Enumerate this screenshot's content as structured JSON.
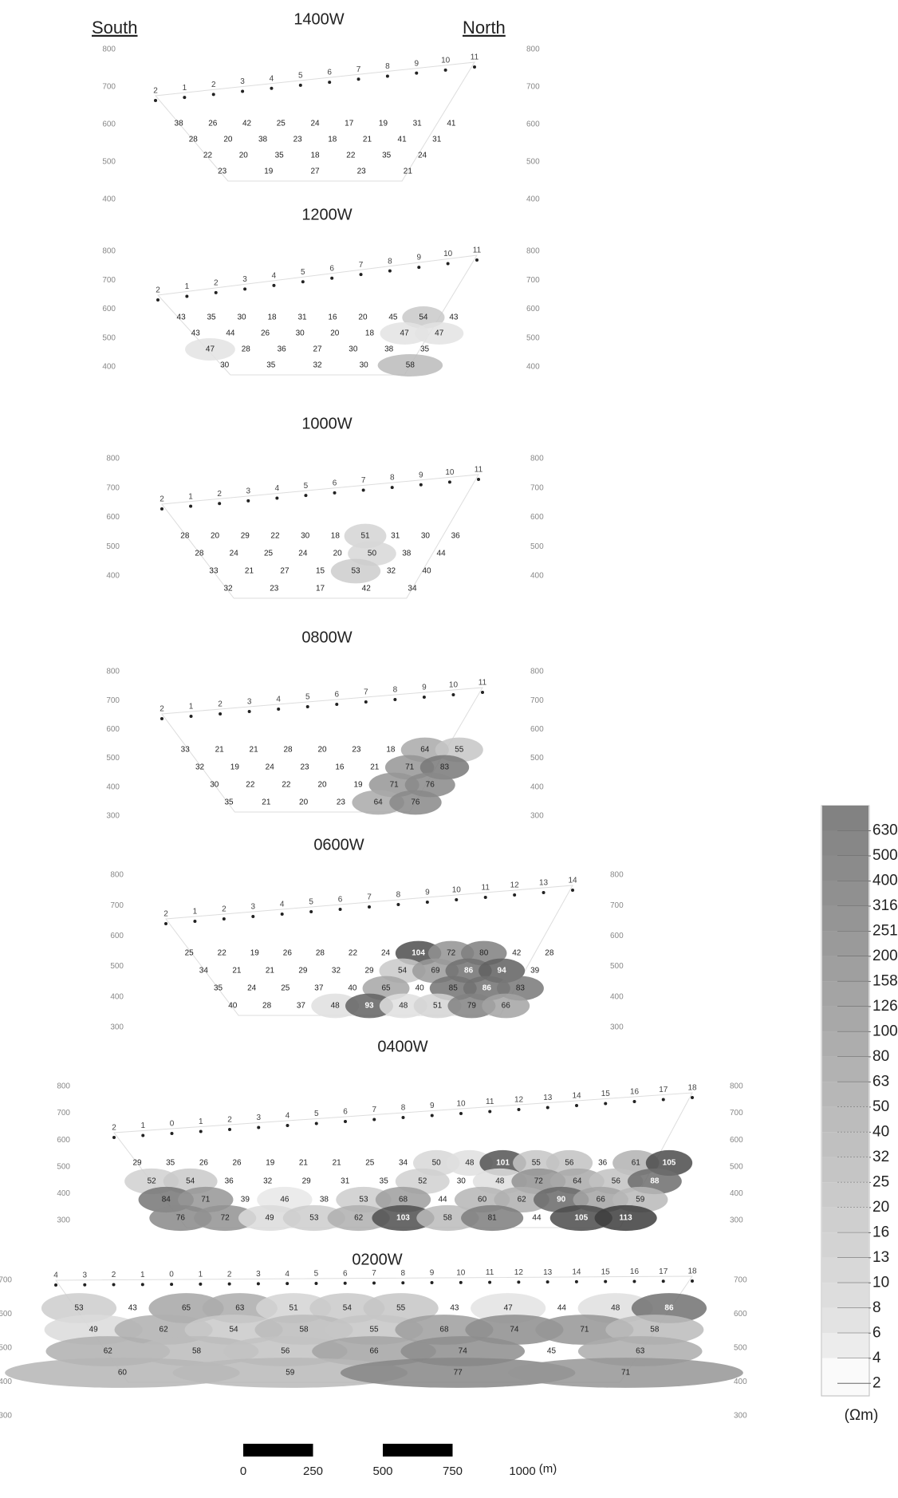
{
  "header": {
    "left": "South",
    "right": "North"
  },
  "sections": [
    {
      "title": "1400W",
      "elevations": [
        800,
        700,
        600,
        500,
        400
      ],
      "electrodes": [
        2,
        1,
        2,
        3,
        4,
        5,
        6,
        7,
        8,
        9,
        10,
        11
      ],
      "rows": [
        [
          38,
          26,
          42,
          25,
          24,
          17,
          19,
          31,
          41
        ],
        [
          28,
          20,
          38,
          23,
          18,
          21,
          41,
          31
        ],
        [
          22,
          20,
          35,
          18,
          22,
          35,
          24
        ],
        [
          23,
          19,
          27,
          23,
          21
        ]
      ]
    },
    {
      "title": "1200W",
      "elevations": [
        800,
        700,
        600,
        500,
        400
      ],
      "electrodes": [
        2,
        1,
        2,
        3,
        4,
        5,
        6,
        7,
        8,
        9,
        10,
        11
      ],
      "rows": [
        [
          43,
          35,
          30,
          18,
          31,
          16,
          20,
          45,
          54,
          43
        ],
        [
          43,
          44,
          26,
          30,
          20,
          18,
          47,
          47
        ],
        [
          47,
          28,
          36,
          27,
          30,
          38,
          35
        ],
        [
          30,
          35,
          32,
          30,
          58
        ]
      ]
    },
    {
      "title": "1000W",
      "elevations": [
        800,
        700,
        600,
        500,
        400
      ],
      "electrodes": [
        2,
        1,
        2,
        3,
        4,
        5,
        6,
        7,
        8,
        9,
        10,
        11
      ],
      "rows": [
        [
          28,
          20,
          29,
          22,
          30,
          18,
          51,
          31,
          30,
          36
        ],
        [
          28,
          24,
          25,
          24,
          20,
          50,
          38,
          44
        ],
        [
          33,
          21,
          27,
          15,
          53,
          32,
          40
        ],
        [
          32,
          23,
          17,
          42,
          34
        ]
      ]
    },
    {
      "title": "0800W",
      "elevations": [
        800,
        700,
        600,
        500,
        400,
        300
      ],
      "electrodes": [
        2,
        1,
        2,
        3,
        4,
        5,
        6,
        7,
        8,
        9,
        10,
        11
      ],
      "rows": [
        [
          33,
          21,
          21,
          28,
          20,
          23,
          18,
          64,
          55
        ],
        [
          32,
          19,
          24,
          23,
          16,
          21,
          71,
          83
        ],
        [
          30,
          22,
          22,
          20,
          19,
          71,
          76
        ],
        [
          35,
          21,
          20,
          23,
          64,
          76
        ]
      ]
    },
    {
      "title": "0600W",
      "elevations": [
        800,
        700,
        600,
        500,
        400,
        300
      ],
      "electrodes": [
        2,
        1,
        2,
        3,
        4,
        5,
        6,
        7,
        8,
        9,
        10,
        11,
        12,
        13,
        14
      ],
      "rows": [
        [
          25,
          22,
          19,
          26,
          28,
          22,
          24,
          104,
          72,
          80,
          42,
          28
        ],
        [
          34,
          21,
          21,
          29,
          32,
          29,
          54,
          69,
          86,
          94,
          39
        ],
        [
          35,
          24,
          25,
          37,
          40,
          65,
          40,
          85,
          86,
          83
        ],
        [
          40,
          28,
          37,
          48,
          93,
          48,
          51,
          79,
          66
        ]
      ]
    },
    {
      "title": "0400W",
      "elevations": [
        800,
        700,
        600,
        500,
        400,
        300
      ],
      "electrodes": [
        2,
        1,
        0,
        1,
        2,
        3,
        4,
        5,
        6,
        7,
        8,
        9,
        10,
        11,
        12,
        13,
        14,
        15,
        16,
        17,
        18
      ],
      "rows": [
        [
          29,
          35,
          26,
          26,
          19,
          21,
          21,
          25,
          34,
          50,
          48,
          101,
          55,
          56,
          36,
          61,
          105
        ],
        [
          52,
          54,
          36,
          32,
          29,
          31,
          35,
          52,
          30,
          48,
          72,
          64,
          56,
          88
        ],
        [
          84,
          71,
          39,
          46,
          38,
          53,
          68,
          44,
          60,
          62,
          90,
          66,
          59
        ],
        [
          76,
          72,
          49,
          53,
          62,
          103,
          58,
          81,
          44,
          105,
          113
        ]
      ]
    },
    {
      "title": "0200W",
      "elevations": [
        700,
        600,
        500,
        400,
        300
      ],
      "electrodes": [
        4,
        3,
        2,
        1,
        0,
        1,
        2,
        3,
        4,
        5,
        6,
        7,
        8,
        9,
        10,
        11,
        12,
        13,
        14,
        15,
        16,
        17,
        18
      ],
      "rows": [
        [
          53,
          43,
          65,
          63,
          51,
          54,
          55,
          43,
          47,
          44,
          48,
          86
        ],
        [
          49,
          62,
          54,
          58,
          55,
          68,
          74,
          71,
          58
        ],
        [
          62,
          58,
          56,
          66,
          74,
          45,
          63
        ],
        [
          60,
          59,
          77,
          71
        ]
      ]
    }
  ],
  "legend": {
    "levels": [
      630,
      500,
      400,
      316,
      251,
      200,
      158,
      126,
      100,
      80,
      63,
      50,
      40,
      32,
      25,
      20,
      16,
      13,
      10,
      8,
      6,
      4,
      2
    ],
    "unit": "(Ωm)"
  },
  "scale": {
    "ticks": [
      0,
      250,
      500,
      750,
      1000
    ],
    "unit": "(m)"
  }
}
